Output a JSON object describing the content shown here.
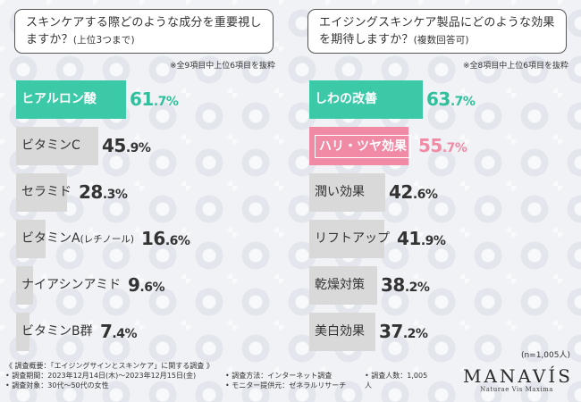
{
  "chart_data": [
    {
      "type": "bar",
      "orientation": "horizontal",
      "title": "スキンケアする際どのような成分を重要視しますか？",
      "title_sub": "(上位3つまで)",
      "note": "※全9項目中上位6項目を抜粋",
      "unit": "%",
      "xlim": [
        0,
        100
      ],
      "categories": [
        "ヒアルロン酸",
        "ビタミンC",
        "セラミド",
        "ビタミンA",
        "ナイアシンアミド",
        "ビタミンB群"
      ],
      "category_suffix": [
        "",
        "",
        "",
        "(レチノール)",
        "",
        ""
      ],
      "values": [
        61.7,
        45.9,
        28.3,
        16.6,
        9.6,
        7.4
      ],
      "value_int": [
        "61",
        "45",
        "28",
        "16",
        "9",
        "7"
      ],
      "value_dec": [
        ".7%",
        ".9%",
        ".3%",
        ".6%",
        ".6%",
        ".4%"
      ],
      "highlight": [
        "teal",
        "",
        "",
        "",
        "",
        ""
      ]
    },
    {
      "type": "bar",
      "orientation": "horizontal",
      "title": "エイジングスキンケア製品にどのような効果を期待しますか？",
      "title_sub": "(複数回答可)",
      "note": "※全8項目中上位6項目を抜粋",
      "unit": "%",
      "xlim": [
        0,
        100
      ],
      "categories": [
        "しわの改善",
        "ハリ・ツヤ効果",
        "潤い効果",
        "リフトアップ",
        "乾燥対策",
        "美白効果"
      ],
      "category_suffix": [
        "",
        "",
        "",
        "",
        "",
        ""
      ],
      "values": [
        63.7,
        55.7,
        42.6,
        41.9,
        38.2,
        37.2
      ],
      "value_int": [
        "63",
        "55",
        "42",
        "41",
        "38",
        "37"
      ],
      "value_dec": [
        ".7%",
        ".7%",
        ".6%",
        ".9%",
        ".2%",
        ".2%"
      ],
      "highlight": [
        "teal",
        "pink",
        "",
        "",
        "",
        ""
      ]
    }
  ],
  "colors": {
    "teal": "#3cc9a8",
    "pink": "#f08aa5",
    "grey_bar": "#d9d9d9"
  },
  "sample_size": "(n=1,005人)",
  "footer": {
    "overview": "《 調査概要：「エイジングサインとスキンケア」に関する調査 》",
    "period": "• 調査期間：2023年12月14日(木)〜2023年12月15日(金)",
    "target": "• 調査対象：30代〜50代の女性",
    "method": "• 調査方法：インターネット調査",
    "provider": "• モニター提供元：ゼネラルリサーチ",
    "count": "• 調査人数：1,005人"
  },
  "logo": {
    "name": "MANAVÍS",
    "tagline": "Naturae Vis Maxima"
  }
}
